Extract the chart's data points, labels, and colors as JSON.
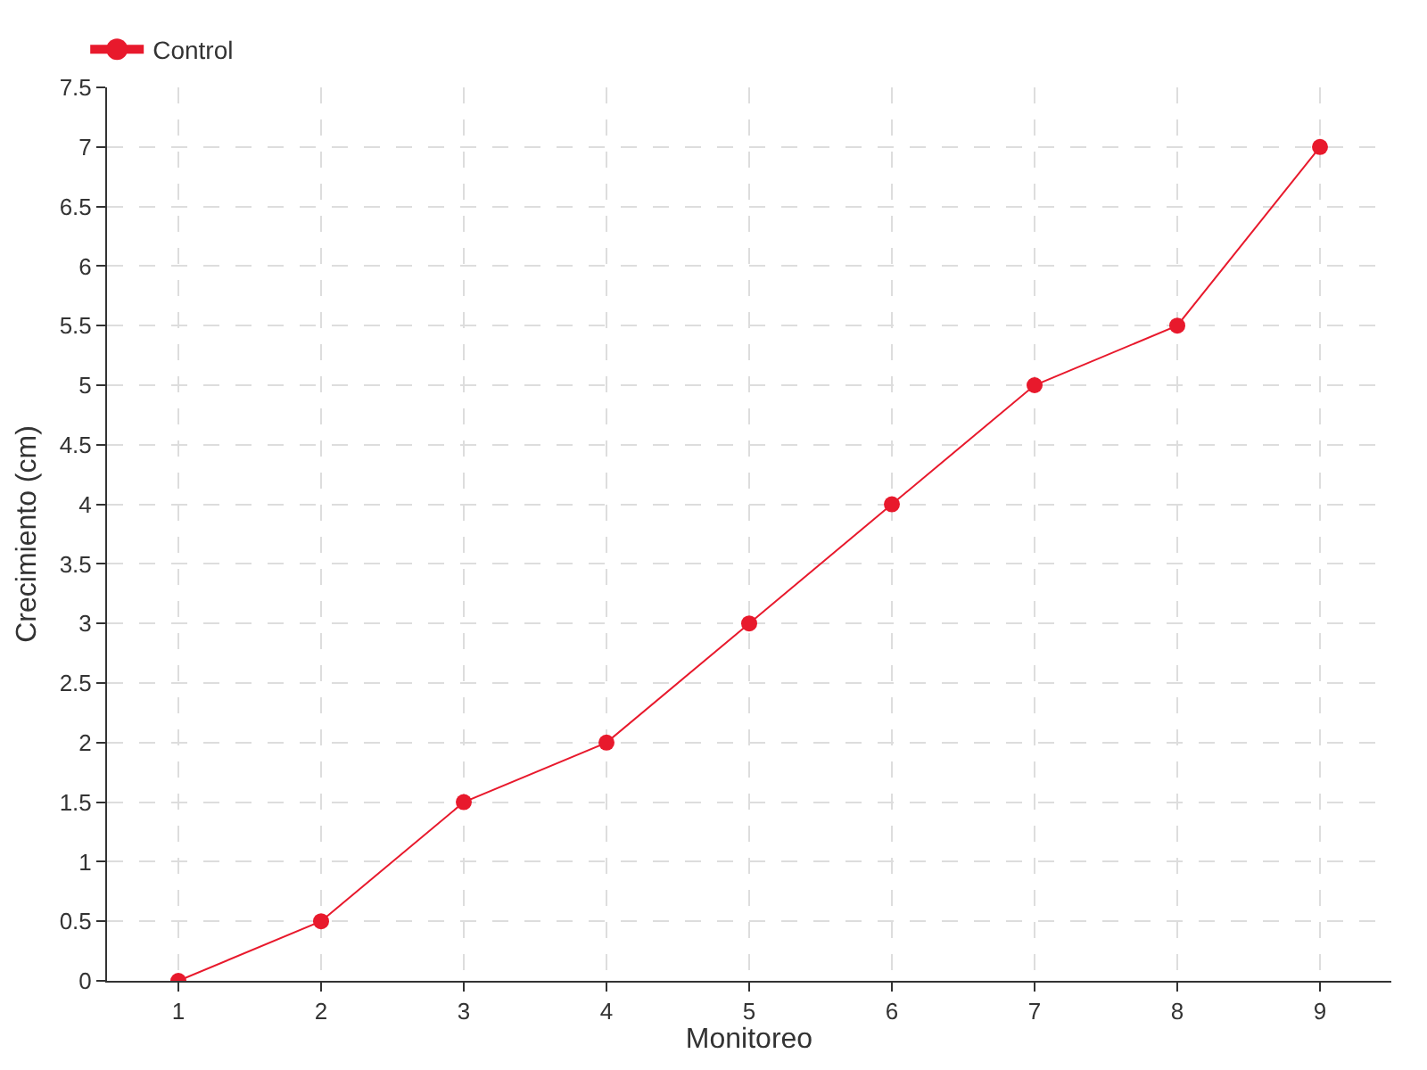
{
  "chart_data": {
    "type": "line",
    "xlabel": "Monitoreo",
    "ylabel": "Crecimiento (cm)",
    "categories": [
      "1",
      "2",
      "3",
      "4",
      "5",
      "6",
      "7",
      "8",
      "9"
    ],
    "series": [
      {
        "name": "Control",
        "color": "#e8192c",
        "values": [
          0,
          0.5,
          1.5,
          2,
          3,
          4,
          5,
          5.5,
          7
        ]
      }
    ],
    "ylim": [
      0,
      7.5
    ],
    "yticks": [
      0,
      0.5,
      1,
      1.5,
      2,
      2.5,
      3,
      3.5,
      4,
      4.5,
      5,
      5.5,
      6,
      6.5,
      7,
      7.5
    ],
    "grid": true,
    "legend": "top left",
    "marker": "circle",
    "line_style": "solid"
  }
}
